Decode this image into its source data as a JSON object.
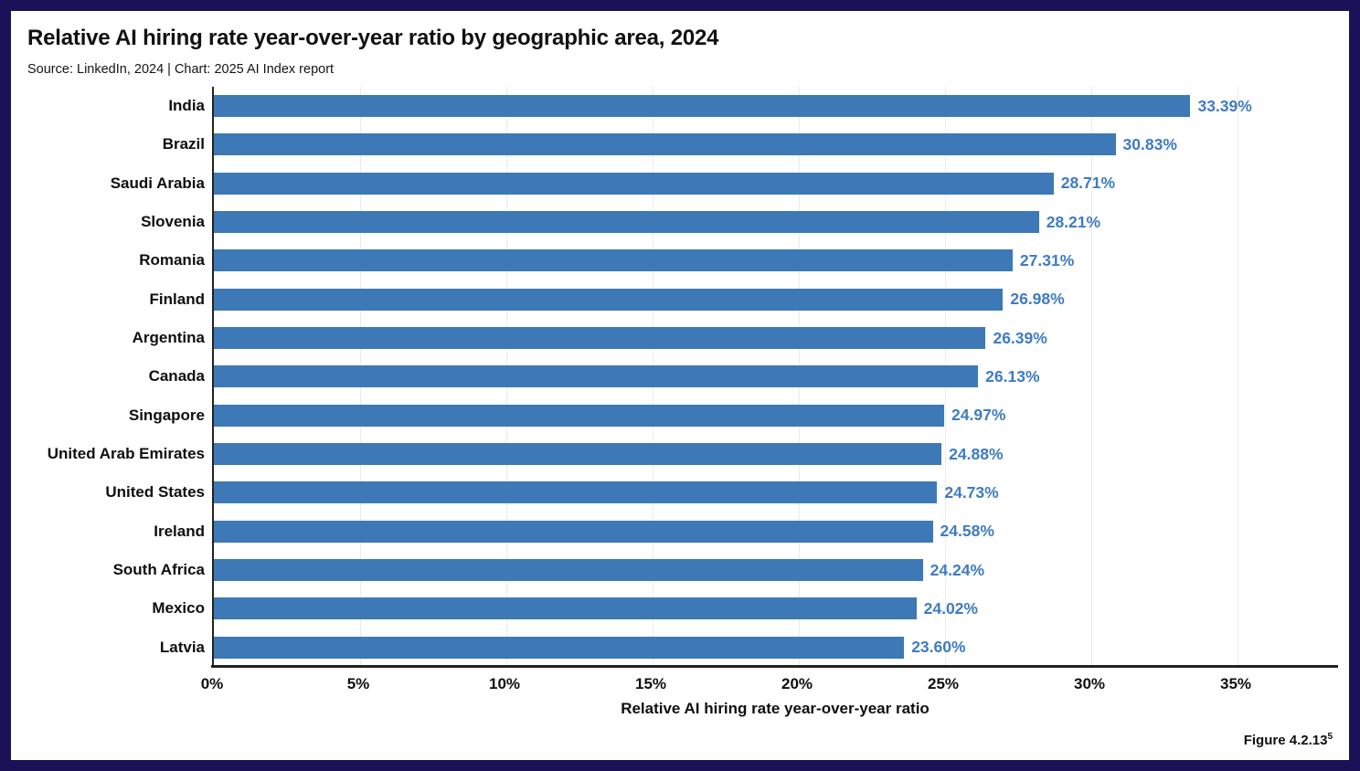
{
  "header": {
    "title": "Relative AI hiring rate year-over-year ratio by geographic area, 2024",
    "source": "Source: LinkedIn, 2024 | Chart: 2025 AI Index report"
  },
  "chart_data": {
    "type": "bar",
    "orientation": "horizontal",
    "title": "Relative AI hiring rate year-over-year ratio by geographic area, 2024",
    "categories": [
      "India",
      "Brazil",
      "Saudi Arabia",
      "Slovenia",
      "Romania",
      "Finland",
      "Argentina",
      "Canada",
      "Singapore",
      "United Arab Emirates",
      "United States",
      "Ireland",
      "South Africa",
      "Mexico",
      "Latvia"
    ],
    "values": [
      33.39,
      30.83,
      28.71,
      28.21,
      27.31,
      26.98,
      26.39,
      26.13,
      24.97,
      24.88,
      24.73,
      24.58,
      24.24,
      24.02,
      23.6
    ],
    "value_labels": [
      "33.39%",
      "30.83%",
      "28.71%",
      "28.21%",
      "27.31%",
      "26.98%",
      "26.39%",
      "26.13%",
      "24.97%",
      "24.88%",
      "24.73%",
      "24.58%",
      "24.24%",
      "24.02%",
      "23.60%"
    ],
    "x_ticks": [
      0,
      5,
      10,
      15,
      20,
      25,
      30,
      35
    ],
    "x_tick_labels": [
      "0%",
      "5%",
      "10%",
      "15%",
      "20%",
      "25%",
      "30%",
      "35%"
    ],
    "xlim": [
      0,
      38.5
    ],
    "xlabel": "Relative AI hiring rate year-over-year ratio",
    "ylabel": "",
    "grid": "vertical",
    "legend": "none"
  },
  "footer": {
    "figure_label": "Figure 4.2.13",
    "figure_note_ref": "5"
  },
  "colors": {
    "frame": "#1a1156",
    "bar": "#3d79b6",
    "value_label": "#3e7cc1",
    "grid": "#ebebeb",
    "axis": "#222222",
    "text": "#111111"
  }
}
